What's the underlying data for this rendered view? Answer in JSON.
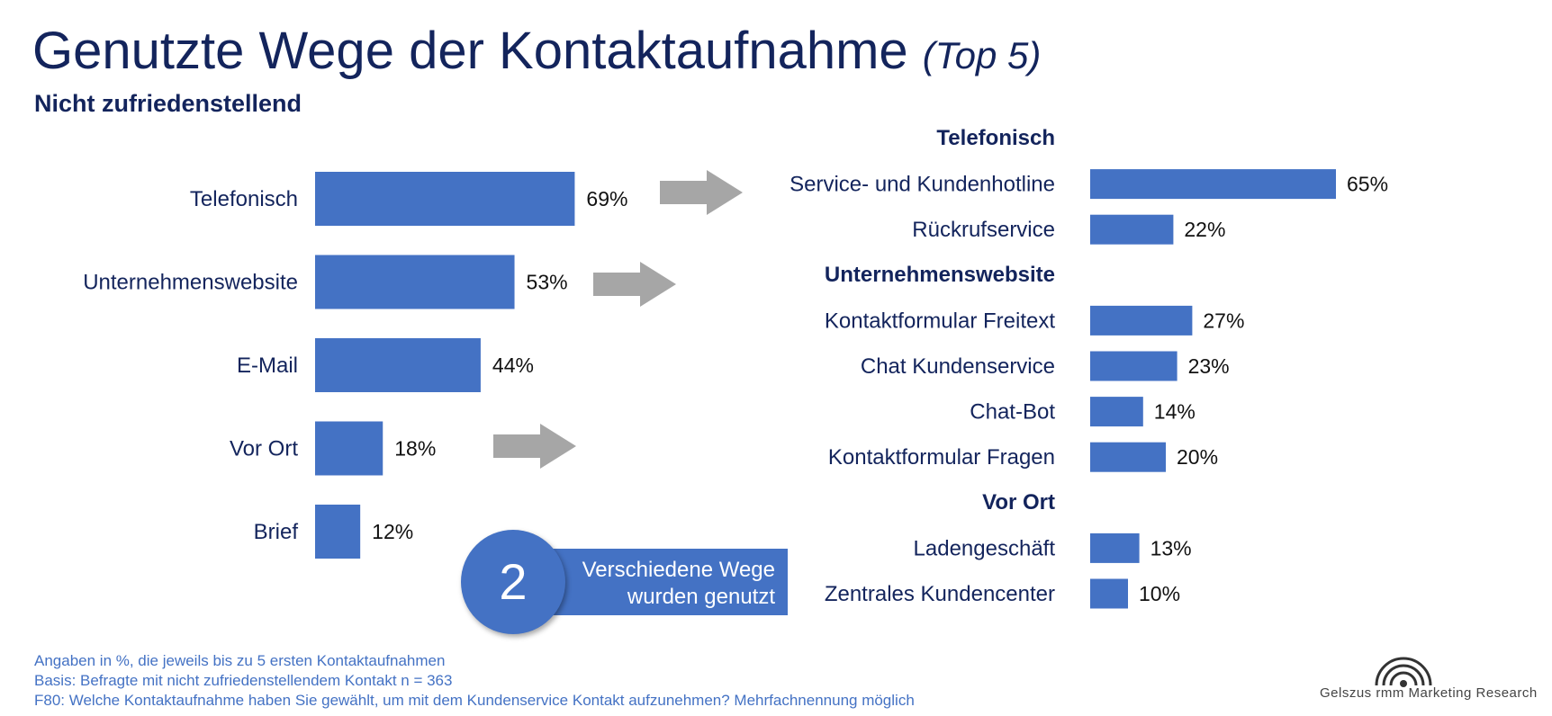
{
  "title": "Genutzte Wege der Kontaktaufnahme",
  "title_suffix": "(Top 5)",
  "subtitle": "Nicht zufriedenstellend",
  "colors": {
    "title": "#13245c",
    "bar": "#4472c4",
    "arrow": "#a6a6a6",
    "footnote": "#4472c4"
  },
  "chart_data": [
    {
      "type": "bar",
      "orientation": "horizontal",
      "categories": [
        "Telefonisch",
        "Unternehmenswebsite",
        "E-Mail",
        "Vor Ort",
        "Brief"
      ],
      "values": [
        69,
        53,
        44,
        18,
        12
      ],
      "value_labels": [
        "69%",
        "53%",
        "44%",
        "18%",
        "12%"
      ],
      "unit": "%",
      "xlim": [
        0,
        100
      ]
    },
    {
      "type": "bar",
      "orientation": "horizontal",
      "groups": [
        {
          "name": "Telefonisch",
          "categories": [
            "Service- und Kundenhotline",
            "Rückrufservice"
          ],
          "values": [
            65,
            22
          ],
          "value_labels": [
            "65%",
            "22%"
          ]
        },
        {
          "name": "Unternehmenswebsite",
          "categories": [
            "Kontaktformular Freitext",
            "Chat Kundenservice",
            "Chat-Bot",
            "Kontaktformular Fragen"
          ],
          "values": [
            27,
            23,
            14,
            20
          ],
          "value_labels": [
            "27%",
            "23%",
            "14%",
            "20%"
          ]
        },
        {
          "name": "Vor Ort",
          "categories": [
            "Ladengeschäft",
            "Zentrales Kundencenter"
          ],
          "values": [
            13,
            10
          ],
          "value_labels": [
            "13%",
            "10%"
          ]
        }
      ],
      "unit": "%",
      "xlim": [
        0,
        100
      ]
    }
  ],
  "callout": {
    "number": "2",
    "line1": "Verschiedene Wege",
    "line2": "wurden genutzt"
  },
  "footnotes": [
    "Angaben in %, die jeweils bis zu 5 ersten Kontaktaufnahmen",
    "Basis: Befragte mit nicht zufriedenstellendem Kontakt n = 363",
    "F80: Welche Kontaktaufnahme haben Sie gewählt, um mit dem Kundenservice Kontakt aufzunehmen? Mehrfachnennung möglich"
  ],
  "logo": {
    "text": "Gelszus rmm Marketing Research",
    "icon": "signal-arc-logo-icon"
  }
}
